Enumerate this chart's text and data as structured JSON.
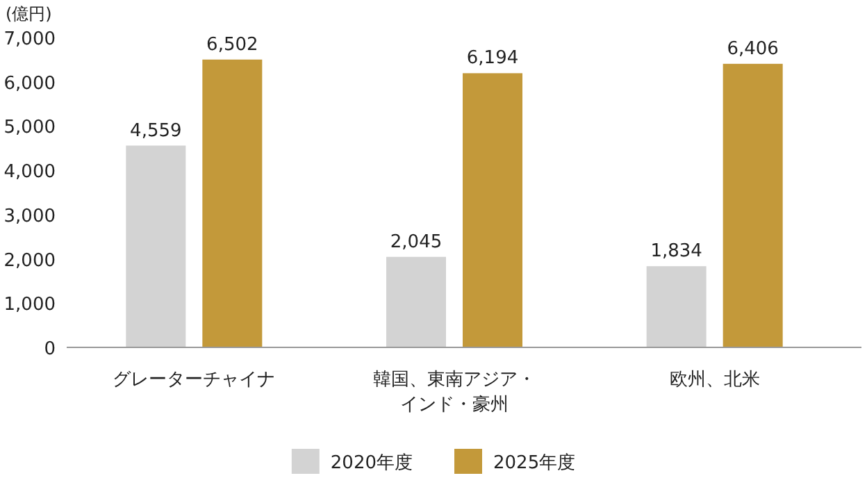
{
  "chart_data": {
    "type": "bar",
    "ylabel": "(億円)",
    "categories": [
      "グレーターチャイナ",
      "韓国、東南アジア・インド・豪州",
      "欧州、北米"
    ],
    "series": [
      {
        "name": "2020年度",
        "color": "#d3d3d3",
        "values": [
          4559,
          2045,
          1834
        ]
      },
      {
        "name": "2025年度",
        "color": "#c3993a",
        "values": [
          6502,
          6194,
          6406
        ]
      }
    ],
    "ylim": [
      0,
      7000
    ],
    "yticks": [
      {
        "value": 0,
        "label": "0"
      },
      {
        "value": 1000,
        "label": "1,000"
      },
      {
        "value": 2000,
        "label": "2,000"
      },
      {
        "value": 3000,
        "label": "3,000"
      },
      {
        "value": 4000,
        "label": "4,000"
      },
      {
        "value": 5000,
        "label": "5,000"
      },
      {
        "value": 6000,
        "label": "6,000"
      },
      {
        "value": 7000,
        "label": "7,000"
      }
    ],
    "value_labels": [
      [
        "4,559",
        "2,045",
        "1,834"
      ],
      [
        "6,502",
        "6,194",
        "6,406"
      ]
    ],
    "grid": false,
    "legend": "bottom"
  }
}
